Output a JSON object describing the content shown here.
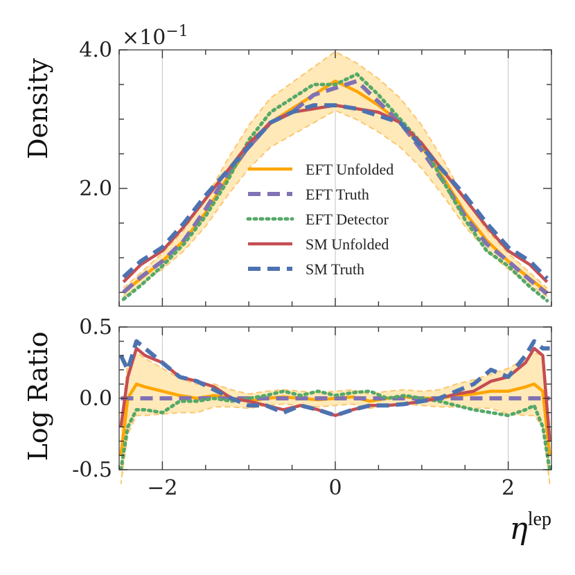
{
  "colors": {
    "eft_unfolded": "#FFA500",
    "eft_truth": "#8172B3",
    "eft_detector": "#55A868",
    "sm_unfolded": "#C44E52",
    "sm_truth": "#4C72B0",
    "band_fill": "#FFE9B8",
    "band_edge": "#FBC670",
    "grid": "#cccccc",
    "axis": "#555555"
  },
  "chart_data": [
    {
      "id": "density",
      "type": "line",
      "ylabel": "Density",
      "xlim": [
        -2.5,
        2.5
      ],
      "ylim": [
        0.3,
        4.0
      ],
      "multiplier_label": "×10",
      "multiplier_exp": "−1",
      "y_ticks": [
        {
          "v": 2.0,
          "label": "2.0"
        },
        {
          "v": 4.0,
          "label": "4.0"
        }
      ],
      "legend": {
        "position": "center",
        "entries": [
          {
            "key": "eft_unfolded",
            "label": "EFT Unfolded"
          },
          {
            "key": "eft_truth",
            "label": "EFT Truth"
          },
          {
            "key": "eft_detector",
            "label": "EFT Detector"
          },
          {
            "key": "sm_unfolded",
            "label": "SM Unfolded"
          },
          {
            "key": "sm_truth",
            "label": "SM Truth"
          }
        ]
      },
      "x": [
        -2.45,
        -2.25,
        -2.0,
        -1.75,
        -1.5,
        -1.25,
        -1.0,
        -0.75,
        -0.5,
        -0.25,
        0.0,
        0.25,
        0.5,
        0.75,
        1.0,
        1.25,
        1.5,
        1.75,
        2.0,
        2.25,
        2.45
      ],
      "series": [
        {
          "name": "EFT Unfolded",
          "key": "eft_unfolded",
          "dash": "solid",
          "values": [
            0.5,
            0.7,
            0.95,
            1.25,
            1.65,
            2.15,
            2.6,
            2.95,
            3.15,
            3.35,
            3.55,
            3.4,
            3.2,
            2.95,
            2.6,
            2.15,
            1.65,
            1.25,
            0.95,
            0.7,
            0.5
          ]
        },
        {
          "name": "EFT Truth",
          "key": "eft_truth",
          "dash": "dash",
          "values": [
            0.5,
            0.72,
            0.95,
            1.25,
            1.7,
            2.2,
            2.6,
            2.95,
            3.1,
            3.35,
            3.45,
            3.55,
            3.25,
            2.95,
            2.55,
            2.1,
            1.6,
            1.2,
            0.95,
            0.68,
            0.48
          ]
        },
        {
          "name": "EFT Detector",
          "key": "eft_detector",
          "dash": "dot",
          "values": [
            0.4,
            0.6,
            0.88,
            1.2,
            1.6,
            2.1,
            2.7,
            3.1,
            3.3,
            3.5,
            3.5,
            3.65,
            3.35,
            3.0,
            2.65,
            2.1,
            1.55,
            1.1,
            0.88,
            0.58,
            0.38
          ]
        },
        {
          "name": "SM Unfolded",
          "key": "sm_unfolded",
          "dash": "solid",
          "values": [
            0.65,
            0.9,
            1.1,
            1.45,
            1.85,
            2.25,
            2.65,
            2.95,
            3.1,
            3.15,
            3.2,
            3.15,
            3.1,
            2.95,
            2.65,
            2.25,
            1.85,
            1.45,
            1.1,
            0.9,
            0.65
          ]
        },
        {
          "name": "SM Truth",
          "key": "sm_truth",
          "dash": "dash",
          "values": [
            0.72,
            0.95,
            1.15,
            1.5,
            1.9,
            2.25,
            2.6,
            2.95,
            3.1,
            3.2,
            3.2,
            3.15,
            3.05,
            2.95,
            2.6,
            2.25,
            1.9,
            1.5,
            1.15,
            0.95,
            0.7
          ]
        }
      ],
      "band": {
        "key": "eft_unfolded",
        "rel_width": 0.12
      }
    },
    {
      "id": "log_ratio",
      "type": "line",
      "ylabel": "Log Ratio",
      "xlabel": "η",
      "xlabel_sup": "lep",
      "xlim": [
        -2.5,
        2.5
      ],
      "ylim": [
        -0.5,
        0.5
      ],
      "x_ticks": [
        {
          "v": -2,
          "label": "−2"
        },
        {
          "v": 0,
          "label": "0"
        },
        {
          "v": 2,
          "label": "2"
        }
      ],
      "y_ticks": [
        {
          "v": 0.5,
          "label": "0.5"
        },
        {
          "v": 0.0,
          "label": "0.0"
        },
        {
          "v": -0.5,
          "label": "-0.5"
        }
      ],
      "x": [
        -2.48,
        -2.4,
        -2.3,
        -2.2,
        -2.0,
        -1.8,
        -1.6,
        -1.4,
        -1.2,
        -1.0,
        -0.8,
        -0.6,
        -0.4,
        -0.2,
        0.0,
        0.2,
        0.4,
        0.6,
        0.8,
        1.0,
        1.2,
        1.4,
        1.6,
        1.8,
        2.0,
        2.2,
        2.3,
        2.4,
        2.48
      ],
      "series": [
        {
          "name": "EFT Unfolded",
          "key": "eft_unfolded",
          "dash": "solid",
          "values": [
            -0.4,
            0.0,
            0.1,
            0.08,
            0.05,
            0.02,
            0.0,
            0.02,
            0.0,
            -0.02,
            0.0,
            0.01,
            0.0,
            -0.01,
            0.0,
            0.01,
            -0.02,
            0.0,
            0.01,
            0.0,
            0.0,
            0.02,
            0.03,
            0.05,
            0.05,
            0.08,
            0.1,
            0.05,
            -0.4
          ]
        },
        {
          "name": "EFT Truth",
          "key": "eft_truth",
          "dash": "dash",
          "values": [
            0.0,
            0.0,
            0.0,
            0.0,
            0.0,
            0.0,
            0.0,
            0.0,
            0.0,
            0.0,
            0.0,
            0.0,
            0.0,
            0.0,
            0.0,
            0.0,
            0.0,
            0.0,
            0.0,
            0.0,
            0.0,
            0.0,
            0.0,
            0.0,
            0.0,
            0.0,
            0.0,
            0.0,
            0.0
          ]
        },
        {
          "name": "EFT Detector",
          "key": "eft_detector",
          "dash": "dot",
          "values": [
            -0.5,
            -0.2,
            -0.08,
            -0.08,
            -0.1,
            -0.02,
            -0.02,
            0.0,
            -0.02,
            0.0,
            0.02,
            0.05,
            0.02,
            0.05,
            0.02,
            0.04,
            0.05,
            0.0,
            0.02,
            0.0,
            -0.02,
            -0.05,
            -0.08,
            -0.1,
            -0.12,
            -0.08,
            -0.05,
            -0.2,
            -0.5
          ]
        },
        {
          "name": "SM Unfolded",
          "key": "sm_unfolded",
          "dash": "solid",
          "values": [
            -0.2,
            0.15,
            0.35,
            0.3,
            0.25,
            0.15,
            0.12,
            0.08,
            0.0,
            -0.02,
            -0.05,
            -0.08,
            -0.05,
            -0.08,
            -0.12,
            -0.08,
            -0.05,
            -0.05,
            -0.04,
            -0.02,
            0.0,
            0.03,
            0.05,
            0.12,
            0.15,
            0.25,
            0.35,
            0.3,
            -0.3
          ]
        },
        {
          "name": "SM Truth",
          "key": "sm_truth",
          "dash": "dash",
          "values": [
            0.3,
            0.2,
            0.4,
            0.35,
            0.25,
            0.15,
            0.12,
            0.06,
            0.0,
            -0.05,
            -0.05,
            -0.1,
            -0.05,
            -0.08,
            -0.12,
            -0.08,
            -0.05,
            -0.05,
            -0.04,
            -0.02,
            0.0,
            0.05,
            0.1,
            0.2,
            0.15,
            0.3,
            0.4,
            0.35,
            0.35
          ]
        }
      ],
      "band": {
        "key": "eft_unfolded",
        "half_width": [
          0.2,
          0.25,
          0.22,
          0.2,
          0.16,
          0.12,
          0.1,
          0.08,
          0.06,
          0.05,
          0.05,
          0.05,
          0.05,
          0.05,
          0.05,
          0.05,
          0.05,
          0.05,
          0.05,
          0.05,
          0.06,
          0.08,
          0.1,
          0.12,
          0.16,
          0.2,
          0.22,
          0.25,
          0.2
        ]
      }
    }
  ]
}
